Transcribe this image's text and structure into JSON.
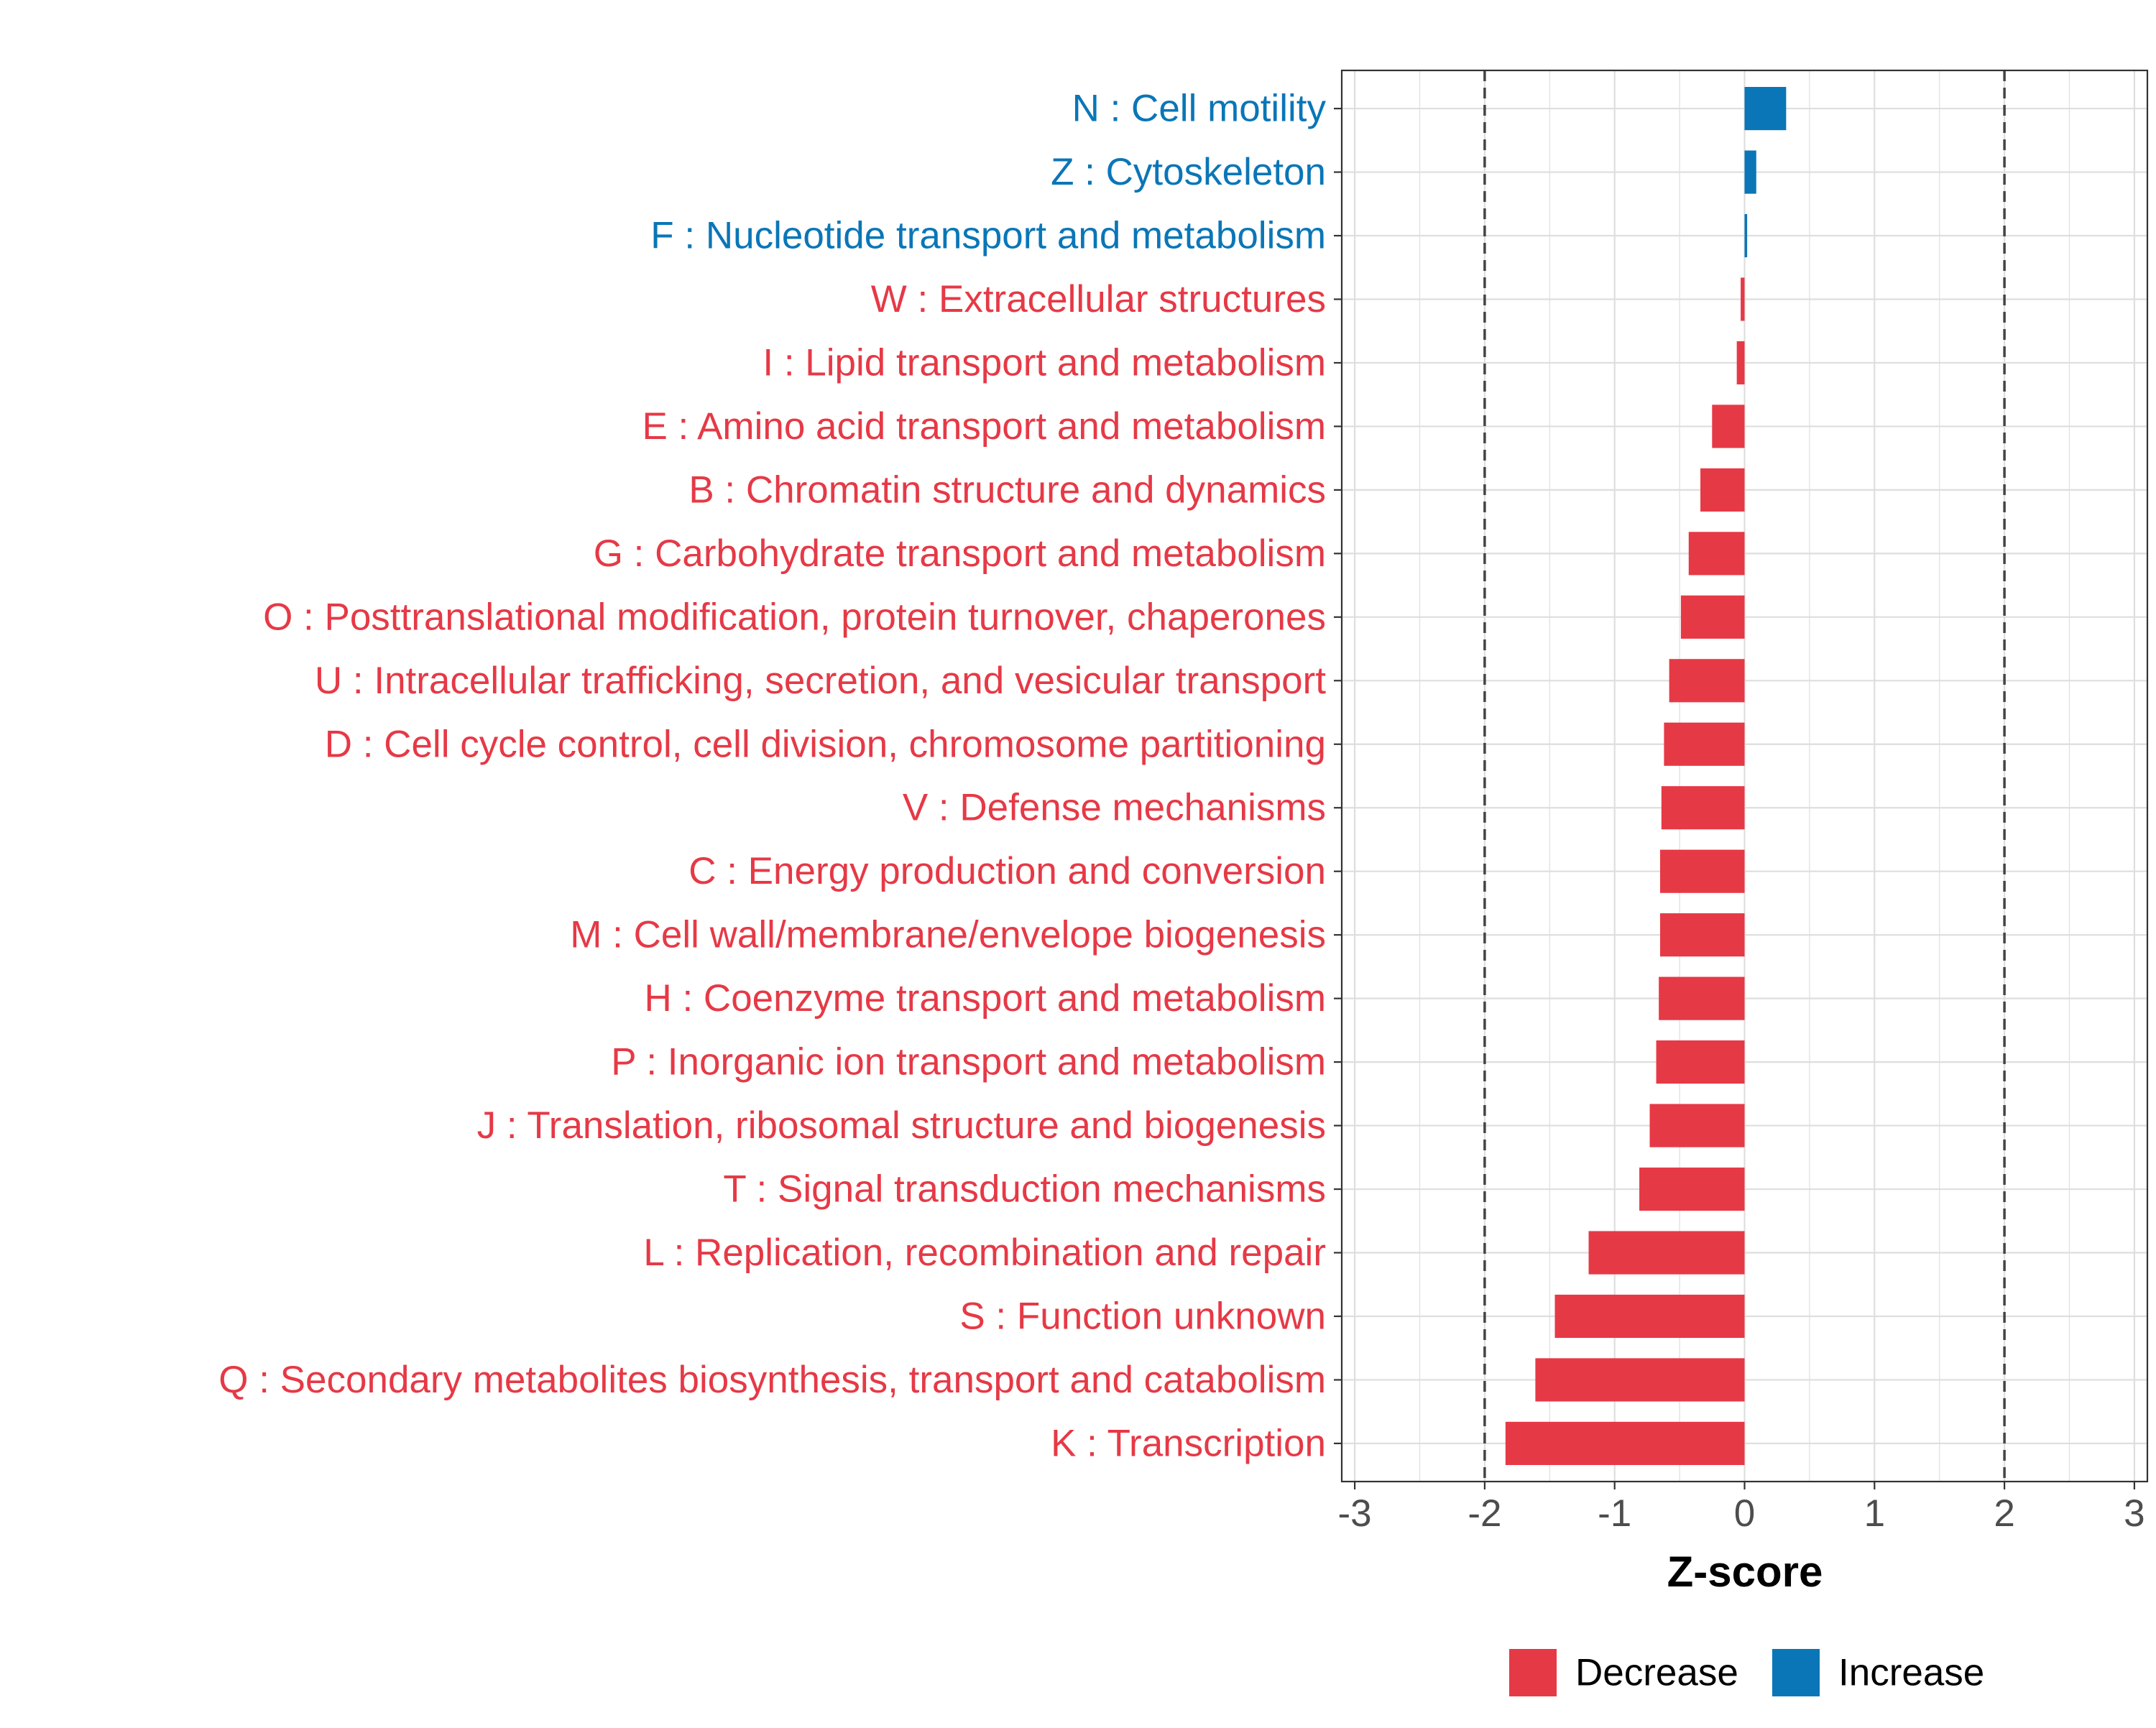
{
  "chart_data": {
    "type": "bar",
    "orientation": "horizontal",
    "title": "",
    "xlabel": "Z-score",
    "ylabel": "",
    "xlim": [
      -3.1,
      3.1
    ],
    "xticks": [
      -3,
      -2,
      -1,
      0,
      1,
      2,
      3
    ],
    "reference_lines": [
      -2,
      2
    ],
    "grid": true,
    "legend_position": "bottom",
    "colors": {
      "Decrease": "#E63946",
      "Increase": "#0A76B7"
    },
    "categories": [
      "N : Cell motility",
      "Z : Cytoskeleton",
      "F : Nucleotide transport and metabolism",
      "W : Extracellular structures",
      "I : Lipid transport and metabolism",
      "E : Amino acid transport and metabolism",
      "B : Chromatin structure and dynamics",
      "G : Carbohydrate transport and metabolism",
      "O : Posttranslational modification, protein turnover, chaperones",
      "U : Intracellular trafficking, secretion, and vesicular transport",
      "D : Cell cycle control, cell division, chromosome partitioning",
      "V : Defense mechanisms",
      "C : Energy production and conversion",
      "M : Cell wall/membrane/envelope biogenesis",
      "H : Coenzyme transport and metabolism",
      "P : Inorganic ion transport and metabolism",
      "J : Translation, ribosomal structure and biogenesis",
      "T : Signal transduction mechanisms",
      "L : Replication, recombination and repair",
      "S : Function unknown",
      "Q : Secondary metabolites biosynthesis, transport and catabolism",
      "K : Transcription"
    ],
    "values": [
      0.32,
      0.09,
      0.02,
      -0.03,
      -0.06,
      -0.25,
      -0.34,
      -0.43,
      -0.49,
      -0.58,
      -0.62,
      -0.64,
      -0.65,
      -0.65,
      -0.66,
      -0.68,
      -0.73,
      -0.81,
      -1.2,
      -1.46,
      -1.61,
      -1.84
    ],
    "direction": [
      "Increase",
      "Increase",
      "Increase",
      "Decrease",
      "Decrease",
      "Decrease",
      "Decrease",
      "Decrease",
      "Decrease",
      "Decrease",
      "Decrease",
      "Decrease",
      "Decrease",
      "Decrease",
      "Decrease",
      "Decrease",
      "Decrease",
      "Decrease",
      "Decrease",
      "Decrease",
      "Decrease",
      "Decrease"
    ],
    "legend": [
      "Decrease",
      "Increase"
    ]
  }
}
